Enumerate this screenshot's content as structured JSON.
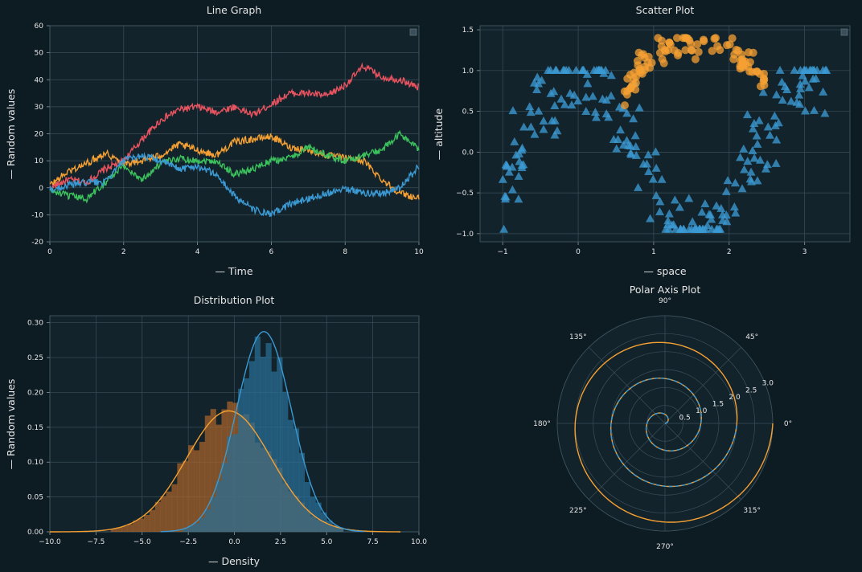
{
  "colors": {
    "background": "#0d1b22",
    "plot_background": "#12232b",
    "grid": "#3b4f5a",
    "text": "#e6e6e6",
    "red": "#e8535f",
    "orange": "#f5a033",
    "green": "#3cc25c",
    "blue": "#3b9ad4",
    "tan": "#8a9a8a"
  },
  "chart_data": [
    {
      "id": "line",
      "type": "line",
      "title": "Line Graph",
      "xlabel": "— Time",
      "ylabel": "— Random values",
      "xlim": [
        0,
        10
      ],
      "ylim": [
        -20,
        60
      ],
      "xticks": [
        0,
        2,
        4,
        6,
        8,
        10
      ],
      "yticks": [
        -20,
        -10,
        0,
        10,
        20,
        30,
        40,
        50,
        60
      ],
      "grid": true,
      "legend": "top-right (empty box)",
      "series": [
        {
          "color": "red",
          "points": [
            [
              0,
              0
            ],
            [
              0.5,
              3
            ],
            [
              1,
              2
            ],
            [
              1.5,
              7
            ],
            [
              2,
              10
            ],
            [
              2.5,
              18
            ],
            [
              3,
              25
            ],
            [
              3.5,
              29
            ],
            [
              4,
              30
            ],
            [
              4.5,
              28
            ],
            [
              5,
              30
            ],
            [
              5.5,
              27
            ],
            [
              6,
              31
            ],
            [
              6.5,
              35
            ],
            [
              7,
              35
            ],
            [
              7.5,
              34
            ],
            [
              8,
              38
            ],
            [
              8.5,
              45
            ],
            [
              9,
              41
            ],
            [
              9.5,
              40
            ],
            [
              10,
              37
            ]
          ]
        },
        {
          "color": "orange",
          "points": [
            [
              0,
              1
            ],
            [
              0.5,
              6
            ],
            [
              1,
              9
            ],
            [
              1.5,
              13
            ],
            [
              2,
              9
            ],
            [
              2.5,
              10
            ],
            [
              3,
              12
            ],
            [
              3.5,
              16
            ],
            [
              4,
              14
            ],
            [
              4.5,
              12
            ],
            [
              5,
              17
            ],
            [
              5.5,
              18
            ],
            [
              6,
              19
            ],
            [
              6.5,
              15
            ],
            [
              7,
              14
            ],
            [
              7.5,
              12
            ],
            [
              8,
              11
            ],
            [
              8.5,
              10
            ],
            [
              9,
              3
            ],
            [
              9.5,
              -2
            ],
            [
              10,
              -4
            ]
          ]
        },
        {
          "color": "green",
          "points": [
            [
              0,
              -1
            ],
            [
              0.5,
              -3
            ],
            [
              1,
              -4
            ],
            [
              1.5,
              2
            ],
            [
              2,
              8
            ],
            [
              2.5,
              3
            ],
            [
              3,
              9
            ],
            [
              3.5,
              11
            ],
            [
              4,
              10
            ],
            [
              4.5,
              10
            ],
            [
              5,
              5
            ],
            [
              5.5,
              7
            ],
            [
              6,
              10
            ],
            [
              6.5,
              11
            ],
            [
              7,
              15
            ],
            [
              7.5,
              12
            ],
            [
              8,
              10
            ],
            [
              8.5,
              12
            ],
            [
              9,
              14
            ],
            [
              9.5,
              20
            ],
            [
              10,
              14
            ]
          ]
        },
        {
          "color": "blue",
          "points": [
            [
              0,
              -1
            ],
            [
              0.5,
              1
            ],
            [
              1,
              2
            ],
            [
              1.5,
              2
            ],
            [
              2,
              10
            ],
            [
              2.5,
              12
            ],
            [
              3,
              10
            ],
            [
              3.5,
              7
            ],
            [
              4,
              8
            ],
            [
              4.5,
              5
            ],
            [
              5,
              -3
            ],
            [
              5.5,
              -8
            ],
            [
              6,
              -10
            ],
            [
              6.5,
              -6
            ],
            [
              7,
              -4
            ],
            [
              7.5,
              -2
            ],
            [
              8,
              0
            ],
            [
              8.5,
              -2
            ],
            [
              9,
              -2
            ],
            [
              9.5,
              0
            ],
            [
              10,
              8
            ]
          ]
        }
      ]
    },
    {
      "id": "scatter",
      "type": "scatter",
      "title": "Scatter Plot",
      "xlabel": "— space",
      "ylabel": "— altitude",
      "xlim": [
        -1.3,
        3.6
      ],
      "ylim": [
        -1.1,
        1.55
      ],
      "xticks": [
        -1,
        0,
        1,
        2,
        3
      ],
      "yticks": [
        -1.0,
        -0.5,
        0.0,
        0.5,
        1.0,
        1.5
      ],
      "ytick_labels": [
        "−1.0",
        "−0.5",
        "0.0",
        "0.5",
        "1.0",
        "1.5"
      ],
      "xtick_labels": [
        "−1",
        "0",
        "1",
        "2",
        "3"
      ],
      "grid": true,
      "legend": "top-right (empty box)",
      "series": [
        {
          "color": "blue",
          "marker": "triangle",
          "count": 230,
          "x_range": [
            -1,
            3.3
          ],
          "noise": 0.28,
          "relation": "sin(2x + 1.57)"
        },
        {
          "color": "orange",
          "marker": "circle",
          "count": 100,
          "x_range": [
            0.6,
            2.5
          ],
          "noise": 0.1,
          "relation": "sqrt(1 - (x-1.6)^2) + 0.35"
        }
      ]
    },
    {
      "id": "dist",
      "type": "histogram",
      "title": "Distribution Plot",
      "xlabel": "— Density",
      "ylabel": "— Random values",
      "xlim": [
        -10,
        10
      ],
      "ylim": [
        0,
        0.31
      ],
      "xticks": [
        -10,
        -7.5,
        -5,
        -2.5,
        0,
        2.5,
        5,
        7.5,
        10
      ],
      "xtick_labels": [
        "−10.0",
        "−7.5",
        "−5.0",
        "−2.5",
        "0.0",
        "2.5",
        "5.0",
        "7.5",
        "10.0"
      ],
      "yticks": [
        0,
        0.05,
        0.1,
        0.15,
        0.2,
        0.25,
        0.3
      ],
      "ytick_labels": [
        "0.00",
        "0.05",
        "0.10",
        "0.15",
        "0.20",
        "0.25",
        "0.30"
      ],
      "grid": true,
      "series": [
        {
          "color": "orange",
          "mean": -0.3,
          "sd": 2.3,
          "range": [
            -10,
            9
          ]
        },
        {
          "color": "blue",
          "mean": 1.6,
          "sd": 1.5,
          "range": [
            -4,
            7
          ]
        }
      ]
    },
    {
      "id": "polar",
      "type": "polar",
      "title": "Polar Axis Plot",
      "angle_labels": [
        "0°",
        "45°",
        "90°",
        "135°",
        "180°",
        "225°",
        "270°",
        "315°"
      ],
      "rmax": 3.0,
      "rticks": [
        0.5,
        1.0,
        1.5,
        2.0,
        2.5,
        3.0
      ],
      "rtick_labels": [
        "0.5",
        "1.0",
        "1.5",
        "2.0",
        "2.5",
        "3.0"
      ],
      "series": [
        {
          "color": "orange",
          "style": "solid",
          "relation": "r = theta / (2*pi)",
          "theta_range_turns": [
            0,
            3
          ]
        },
        {
          "color": "blue",
          "style": "dashed",
          "relation": "r = theta / (2*pi)",
          "theta_range_turns": [
            0,
            2
          ]
        }
      ]
    }
  ]
}
